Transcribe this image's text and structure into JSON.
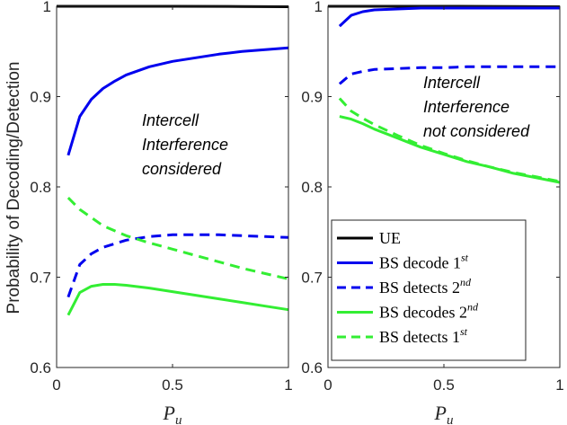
{
  "chart_data": [
    {
      "type": "line",
      "title": "",
      "xlabel_main": "P",
      "xlabel_sub": "u",
      "ylabel": "Probability of Decoding/Detection",
      "xlim": [
        0,
        1
      ],
      "ylim": [
        0.6,
        1
      ],
      "xticks": [
        "0",
        "0.5",
        "1"
      ],
      "yticks": [
        "0.6",
        "0.7",
        "0.8",
        "0.9",
        "1"
      ],
      "annotation": [
        "Intercell",
        "Interference",
        "considered"
      ],
      "series": [
        {
          "name": "UE",
          "color": "#000000",
          "dash": "solid",
          "x": [
            0,
            0.05,
            0.2,
            0.5,
            0.8,
            1.0
          ],
          "y": [
            1.0,
            1.0,
            1.0,
            1.0,
            0.9998,
            0.9995
          ]
        },
        {
          "name": "BS decode 1st",
          "color": "#0000ee",
          "dash": "solid",
          "x": [
            0.05,
            0.1,
            0.15,
            0.2,
            0.25,
            0.3,
            0.4,
            0.5,
            0.6,
            0.7,
            0.8,
            0.9,
            1.0
          ],
          "y": [
            0.835,
            0.878,
            0.897,
            0.909,
            0.917,
            0.924,
            0.933,
            0.939,
            0.943,
            0.947,
            0.95,
            0.952,
            0.954
          ]
        },
        {
          "name": "BS detects 2nd",
          "color": "#0000ee",
          "dash": "dashed",
          "x": [
            0.05,
            0.1,
            0.15,
            0.2,
            0.3,
            0.4,
            0.5,
            0.6,
            0.7,
            0.8,
            0.9,
            1.0
          ],
          "y": [
            0.678,
            0.714,
            0.726,
            0.733,
            0.741,
            0.745,
            0.747,
            0.747,
            0.747,
            0.746,
            0.745,
            0.744
          ]
        },
        {
          "name": "BS decodes 2nd",
          "color": "#33ee33",
          "dash": "solid",
          "x": [
            0.05,
            0.1,
            0.15,
            0.2,
            0.25,
            0.3,
            0.4,
            0.5,
            0.6,
            0.7,
            0.8,
            0.9,
            1.0
          ],
          "y": [
            0.658,
            0.683,
            0.69,
            0.692,
            0.692,
            0.691,
            0.688,
            0.684,
            0.68,
            0.676,
            0.672,
            0.668,
            0.664
          ]
        },
        {
          "name": "BS detects 1st",
          "color": "#33ee33",
          "dash": "dashed",
          "x": [
            0.05,
            0.1,
            0.2,
            0.3,
            0.4,
            0.5,
            0.6,
            0.7,
            0.8,
            0.9,
            1.0
          ],
          "y": [
            0.788,
            0.775,
            0.757,
            0.746,
            0.738,
            0.731,
            0.724,
            0.717,
            0.71,
            0.704,
            0.698
          ]
        }
      ]
    },
    {
      "type": "line",
      "title": "",
      "xlabel_main": "P",
      "xlabel_sub": "u",
      "ylabel": "",
      "xlim": [
        0,
        1
      ],
      "ylim": [
        0.6,
        1
      ],
      "xticks": [
        "0",
        "0.5",
        "1"
      ],
      "yticks": [
        "0.6",
        "0.7",
        "0.8",
        "0.9",
        "1"
      ],
      "annotation": [
        "Intercell",
        "Interference",
        "not considered"
      ],
      "legend_position": "bottom-right",
      "series": [
        {
          "name": "UE",
          "color": "#000000",
          "dash": "solid",
          "x": [
            0,
            0.05,
            0.2,
            0.5,
            0.8,
            1.0
          ],
          "y": [
            1.0,
            1.0,
            1.0,
            1.0,
            0.9998,
            0.9995
          ]
        },
        {
          "name": "BS decode 1st",
          "color": "#0000ee",
          "dash": "solid",
          "x": [
            0.05,
            0.1,
            0.15,
            0.2,
            0.3,
            0.4,
            0.5,
            0.6,
            0.8,
            1.0
          ],
          "y": [
            0.978,
            0.99,
            0.994,
            0.996,
            0.997,
            0.998,
            0.998,
            0.998,
            0.998,
            0.998
          ]
        },
        {
          "name": "BS detects 2nd",
          "color": "#0000ee",
          "dash": "dashed",
          "x": [
            0.05,
            0.1,
            0.15,
            0.2,
            0.3,
            0.4,
            0.5,
            0.6,
            0.8,
            1.0
          ],
          "y": [
            0.914,
            0.925,
            0.928,
            0.93,
            0.931,
            0.932,
            0.932,
            0.933,
            0.933,
            0.933
          ]
        },
        {
          "name": "BS decodes 2nd",
          "color": "#33ee33",
          "dash": "solid",
          "x": [
            0.05,
            0.1,
            0.15,
            0.2,
            0.3,
            0.4,
            0.5,
            0.6,
            0.7,
            0.8,
            0.9,
            1.0
          ],
          "y": [
            0.878,
            0.875,
            0.87,
            0.864,
            0.854,
            0.844,
            0.836,
            0.828,
            0.822,
            0.815,
            0.81,
            0.805
          ]
        },
        {
          "name": "BS detects 1st",
          "color": "#33ee33",
          "dash": "dashed",
          "x": [
            0.05,
            0.1,
            0.15,
            0.2,
            0.3,
            0.4,
            0.5,
            0.6,
            0.7,
            0.8,
            0.9,
            1.0
          ],
          "y": [
            0.898,
            0.884,
            0.876,
            0.869,
            0.857,
            0.846,
            0.837,
            0.829,
            0.822,
            0.816,
            0.811,
            0.806
          ]
        }
      ]
    }
  ],
  "legend": [
    {
      "main": "UE",
      "sup": "",
      "color": "#000000",
      "dash": "solid"
    },
    {
      "main": "BS decode 1",
      "sup": "st",
      "color": "#0000ee",
      "dash": "solid"
    },
    {
      "main": "BS detects 2",
      "sup": "nd",
      "color": "#0000ee",
      "dash": "dashed"
    },
    {
      "main": "BS decodes 2",
      "sup": "nd",
      "color": "#33ee33",
      "dash": "solid"
    },
    {
      "main": "BS detects 1",
      "sup": "st",
      "color": "#33ee33",
      "dash": "dashed"
    }
  ]
}
